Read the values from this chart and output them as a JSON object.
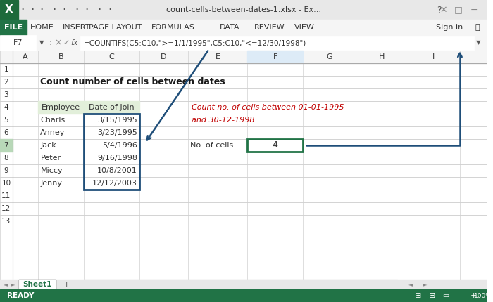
{
  "title_bar": "count-cells-between-dates-1.xlsx - Ex...",
  "formula": "=COUNTIFS(C5:C10,\">='1/1/1995\",C5:C10,\"<=12/30/1998\")",
  "formula_display": "=COUNTIFS(C5:C10,\">= 1/1/1995\",C5:C10,\"<=12/30/1998\")",
  "cell_ref": "F7",
  "sheet_title": "Count number of cells between dates",
  "employees": [
    "Charls",
    "Anney",
    "Jack",
    "Peter",
    "Miccy",
    "Jenny"
  ],
  "dates": [
    "3/15/1995",
    "3/23/1995",
    "5/4/1996",
    "9/16/1998",
    "10/8/2001",
    "12/12/2003"
  ],
  "result_label": "No. of cells",
  "result_value": "4",
  "annotation_text_line1": "Count no. of cells between 01-01-1995",
  "annotation_text_line2": "and 30-12-1998",
  "col_headers": [
    "A",
    "B",
    "C",
    "D",
    "E",
    "F",
    "G",
    "H",
    "I"
  ],
  "row_headers": [
    "1",
    "2",
    "3",
    "4",
    "5",
    "6",
    "7",
    "8",
    "9",
    "10",
    "11",
    "12"
  ],
  "menu_items": [
    "FILE",
    "HOME",
    "INSERT",
    "PAGE LAYOUT",
    "FORMULAS",
    "DATA",
    "REVIEW",
    "VIEW"
  ],
  "bg_color": "#FFFFFF",
  "header_bg": "#F0F0F0",
  "grid_color": "#D0D0D0",
  "green_bg": "#E2EFDA",
  "blue_border": "#1F4E79",
  "title_bar_bg": "#E8E8E8",
  "ribbon_bg": "#F5F5F5",
  "file_btn_bg": "#217346",
  "formula_bar_bg": "#FFFFFF",
  "status_bar_bg": "#217346",
  "active_col_bg": "#DDEBF7",
  "selected_row_bg": "#E8F4E8"
}
